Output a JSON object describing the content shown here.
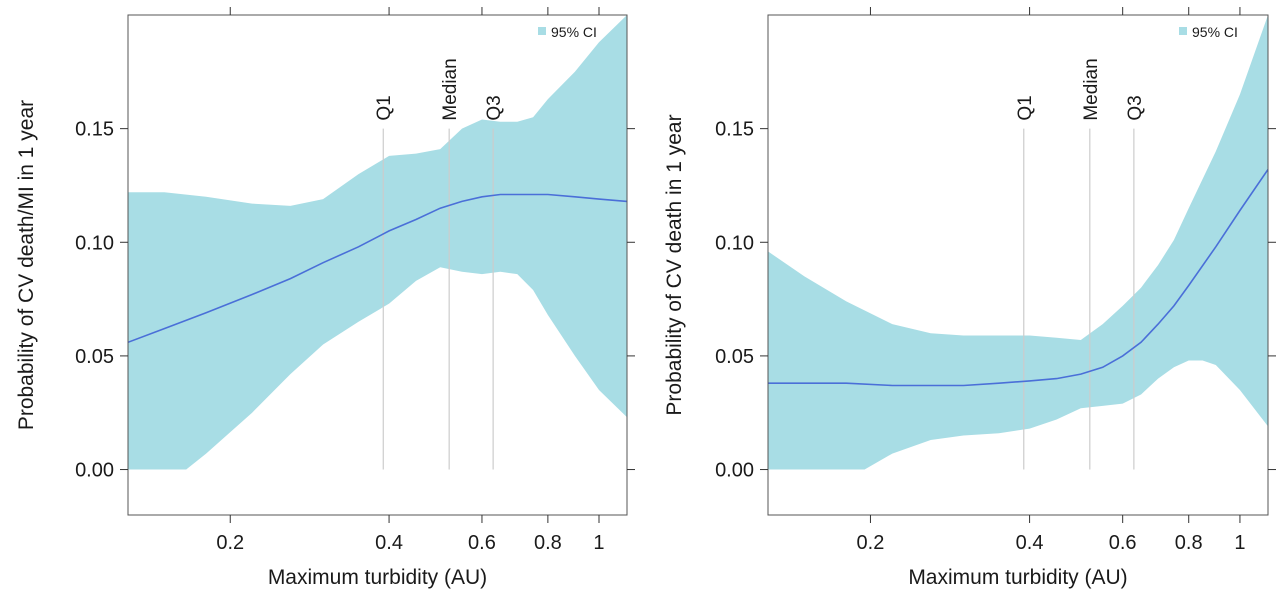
{
  "chart_data": [
    {
      "type": "line",
      "panel": "left",
      "title": "",
      "xlabel": "Maximum turbidity (AU)",
      "ylabel": "Probability of CV death/MI in 1 year",
      "xscale": "log",
      "xlim": [
        0.128,
        1.13
      ],
      "ylim": [
        -0.02,
        0.2
      ],
      "xticks": [
        0.2,
        0.4,
        0.6,
        0.8,
        1
      ],
      "xtick_labels": [
        "0.2",
        "0.4",
        "0.6",
        "0.8",
        "1"
      ],
      "yticks": [
        0,
        0.05,
        0.1,
        0.15
      ],
      "ytick_labels": [
        "0.00",
        "0.05",
        "0.10",
        "0.15"
      ],
      "grid": false,
      "legend": {
        "position": "top-right",
        "label": "95% CI",
        "color": "#a8dde5"
      },
      "quartiles": [
        {
          "label": "Q1",
          "x": 0.39
        },
        {
          "label": "Median",
          "x": 0.52
        },
        {
          "label": "Q3",
          "x": 0.63
        }
      ],
      "series": [
        {
          "kind": "estimate",
          "color": "#4a6fd8",
          "x": [
            0.128,
            0.15,
            0.18,
            0.22,
            0.26,
            0.3,
            0.35,
            0.4,
            0.45,
            0.5,
            0.55,
            0.6,
            0.65,
            0.7,
            0.75,
            0.8,
            0.9,
            1.0,
            1.13
          ],
          "y": [
            0.056,
            0.062,
            0.069,
            0.077,
            0.084,
            0.091,
            0.098,
            0.105,
            0.11,
            0.115,
            0.118,
            0.12,
            0.121,
            0.121,
            0.121,
            0.121,
            0.12,
            0.119,
            0.118
          ]
        },
        {
          "kind": "ci_upper",
          "color": "#a8dde5",
          "x": [
            0.128,
            0.15,
            0.18,
            0.22,
            0.26,
            0.3,
            0.35,
            0.4,
            0.45,
            0.5,
            0.55,
            0.6,
            0.65,
            0.7,
            0.75,
            0.8,
            0.9,
            1.0,
            1.13
          ],
          "y": [
            0.122,
            0.122,
            0.12,
            0.117,
            0.116,
            0.119,
            0.13,
            0.138,
            0.139,
            0.141,
            0.15,
            0.154,
            0.153,
            0.153,
            0.155,
            0.163,
            0.175,
            0.188,
            0.2
          ]
        },
        {
          "kind": "ci_lower",
          "color": "#a8dde5",
          "x": [
            0.128,
            0.15,
            0.165,
            0.18,
            0.22,
            0.26,
            0.3,
            0.35,
            0.4,
            0.45,
            0.5,
            0.55,
            0.6,
            0.65,
            0.7,
            0.75,
            0.8,
            0.9,
            1.0,
            1.13
          ],
          "y": [
            0.0,
            0.0,
            0.0,
            0.007,
            0.025,
            0.042,
            0.055,
            0.065,
            0.073,
            0.083,
            0.089,
            0.087,
            0.086,
            0.087,
            0.086,
            0.079,
            0.068,
            0.05,
            0.035,
            0.023
          ]
        }
      ]
    },
    {
      "type": "line",
      "panel": "right",
      "title": "",
      "xlabel": "Maximum turbidity (AU)",
      "ylabel": "Probability of CV death in 1 year",
      "xscale": "log",
      "xlim": [
        0.128,
        1.13
      ],
      "ylim": [
        -0.02,
        0.2
      ],
      "xticks": [
        0.2,
        0.4,
        0.6,
        0.8,
        1
      ],
      "xtick_labels": [
        "0.2",
        "0.4",
        "0.6",
        "0.8",
        "1"
      ],
      "yticks": [
        0,
        0.05,
        0.1,
        0.15
      ],
      "ytick_labels": [
        "0.00",
        "0.05",
        "0.10",
        "0.15"
      ],
      "grid": false,
      "legend": {
        "position": "top-right",
        "label": "95% CI",
        "color": "#a8dde5"
      },
      "quartiles": [
        {
          "label": "Q1",
          "x": 0.39
        },
        {
          "label": "Median",
          "x": 0.52
        },
        {
          "label": "Q3",
          "x": 0.63
        }
      ],
      "series": [
        {
          "kind": "estimate",
          "color": "#4a6fd8",
          "x": [
            0.128,
            0.15,
            0.18,
            0.22,
            0.26,
            0.3,
            0.35,
            0.4,
            0.45,
            0.5,
            0.55,
            0.6,
            0.65,
            0.7,
            0.75,
            0.8,
            0.9,
            1.0,
            1.13
          ],
          "y": [
            0.038,
            0.038,
            0.038,
            0.037,
            0.037,
            0.037,
            0.038,
            0.039,
            0.04,
            0.042,
            0.045,
            0.05,
            0.056,
            0.064,
            0.072,
            0.081,
            0.098,
            0.114,
            0.132
          ]
        },
        {
          "kind": "ci_upper",
          "color": "#a8dde5",
          "x": [
            0.128,
            0.15,
            0.18,
            0.22,
            0.26,
            0.3,
            0.35,
            0.4,
            0.45,
            0.5,
            0.55,
            0.6,
            0.65,
            0.7,
            0.75,
            0.8,
            0.9,
            1.0,
            1.13
          ],
          "y": [
            0.096,
            0.085,
            0.074,
            0.064,
            0.06,
            0.059,
            0.059,
            0.059,
            0.058,
            0.057,
            0.064,
            0.072,
            0.08,
            0.09,
            0.101,
            0.115,
            0.14,
            0.165,
            0.2
          ]
        },
        {
          "kind": "ci_lower",
          "color": "#a8dde5",
          "x": [
            0.128,
            0.15,
            0.18,
            0.195,
            0.22,
            0.26,
            0.3,
            0.35,
            0.4,
            0.45,
            0.5,
            0.55,
            0.6,
            0.65,
            0.7,
            0.75,
            0.8,
            0.85,
            0.9,
            1.0,
            1.13
          ],
          "y": [
            0.0,
            0.0,
            0.0,
            0.0,
            0.007,
            0.013,
            0.015,
            0.016,
            0.018,
            0.022,
            0.027,
            0.028,
            0.029,
            0.033,
            0.04,
            0.045,
            0.048,
            0.048,
            0.046,
            0.035,
            0.019
          ]
        }
      ]
    }
  ]
}
